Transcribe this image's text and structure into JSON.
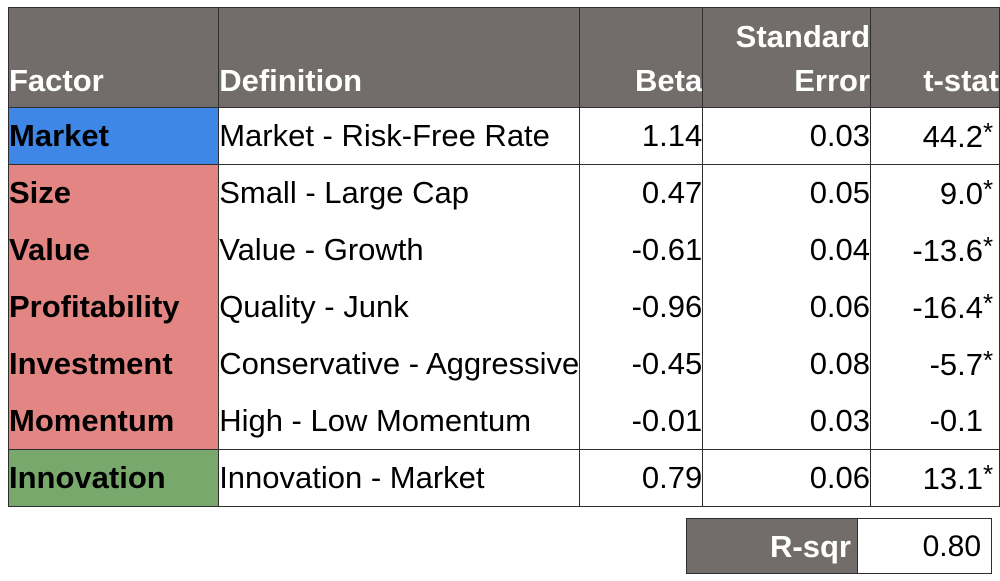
{
  "colors": {
    "header_bg": "#726d6a",
    "market": "#3f87e6",
    "style_factors": "#e38683",
    "innovation": "#78a86b"
  },
  "headers": {
    "factor": "Factor",
    "definition": "Definition",
    "beta": "Beta",
    "se_line1": "Standard",
    "se_line2": "Error",
    "tstat": "t-stat"
  },
  "rows": [
    {
      "factor": "Market",
      "definition": "Market - Risk-Free Rate",
      "beta": "1.14",
      "se": "0.03",
      "t": "44.2",
      "star": "*"
    },
    {
      "factor": "Size",
      "definition": "Small - Large Cap",
      "beta": "0.47",
      "se": "0.05",
      "t": "9.0",
      "star": "*"
    },
    {
      "factor": "Value",
      "definition": "Value - Growth",
      "beta": "-0.61",
      "se": "0.04",
      "t": "-13.6",
      "star": "*"
    },
    {
      "factor": "Profitability",
      "definition": "Quality - Junk",
      "beta": "-0.96",
      "se": "0.06",
      "t": "-16.4",
      "star": "*"
    },
    {
      "factor": "Investment",
      "definition": "Conservative - Aggressive",
      "beta": "-0.45",
      "se": "0.08",
      "t": "-5.7",
      "star": "*"
    },
    {
      "factor": "Momentum",
      "definition": "High - Low Momentum",
      "beta": "-0.01",
      "se": "0.03",
      "t": "-0.1",
      "star": ""
    },
    {
      "factor": "Innovation",
      "definition": "Innovation - Market",
      "beta": "0.79",
      "se": "0.06",
      "t": "13.1",
      "star": "*"
    }
  ],
  "rsq": {
    "label": "R-sqr",
    "value": "0.80"
  }
}
